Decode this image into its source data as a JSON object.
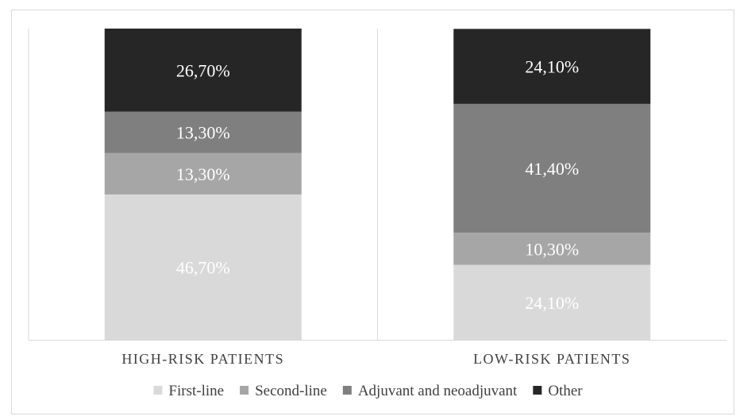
{
  "chart_data": {
    "type": "bar",
    "stacked": true,
    "normalized": true,
    "categories": [
      "HIGH-RISK PATIENTS",
      "LOW-RISK PATIENTS"
    ],
    "series": [
      {
        "name": "First-line",
        "values": [
          46.7,
          24.1
        ],
        "labels": [
          "46,70%",
          "24,10%"
        ],
        "color": "#d9d9d9",
        "label_color": "#ffffff"
      },
      {
        "name": "Second-line",
        "values": [
          13.3,
          10.3
        ],
        "labels": [
          "13,30%",
          "10,30%"
        ],
        "color": "#a6a6a6",
        "label_color": "#ffffff"
      },
      {
        "name": "Adjuvant and neoadjuvant",
        "values": [
          13.3,
          41.4
        ],
        "labels": [
          "13,30%",
          "41,40%"
        ],
        "color": "#7f7f7f",
        "label_color": "#ffffff"
      },
      {
        "name": "Other",
        "values": [
          26.7,
          24.1
        ],
        "labels": [
          "26,70%",
          "24,10%"
        ],
        "color": "#262626",
        "label_color": "#ffffff"
      }
    ],
    "ylim": [
      0,
      100
    ],
    "grid": false,
    "legend_position": "bottom"
  }
}
